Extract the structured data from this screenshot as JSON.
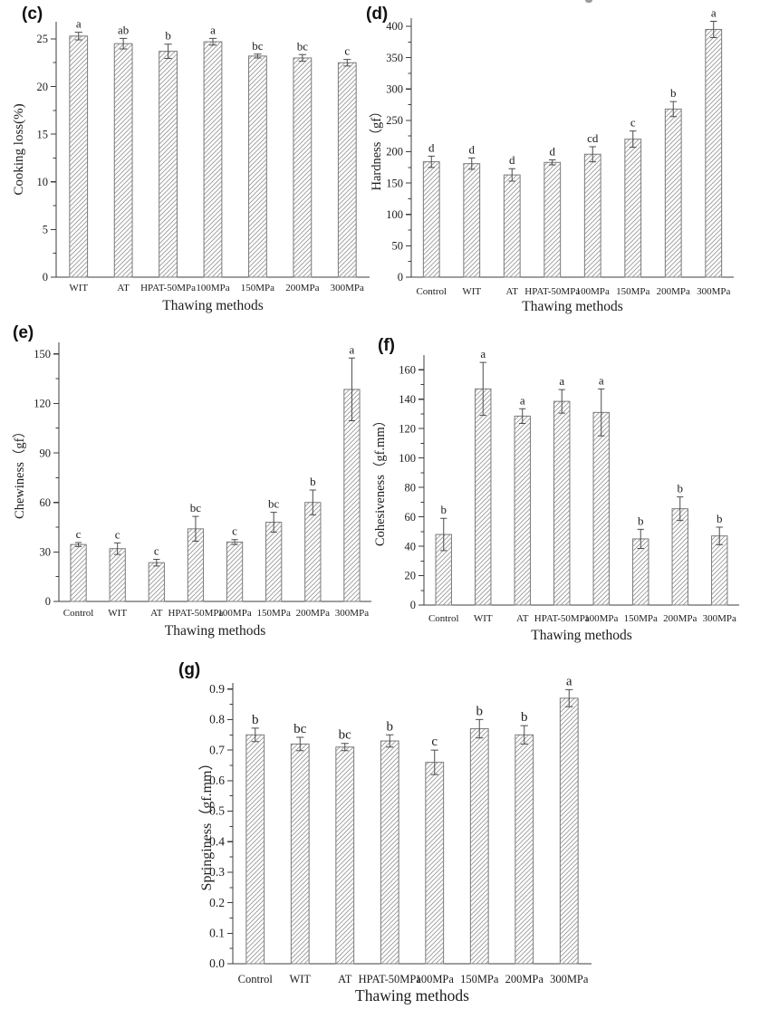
{
  "figure": {
    "background_color": "#ffffff",
    "text_color": "#1c1c1c",
    "axis_color": "#3c3c3c",
    "bar_fill_color": "#ffffff",
    "bar_border_color": "#7a7a7a",
    "hatch_line_color": "#9a9a9a",
    "error_bar_color": "#4c4c4c"
  },
  "chart_data": [
    {
      "type": "bar",
      "panel_label": "(c)",
      "xlabel": "Thawing methods",
      "ylabel": "Cooking loss(%)",
      "categories": [
        "WIT",
        "AT",
        "HPAT-50MPa",
        "100MPa",
        "150MPa",
        "200MPa",
        "300MPa"
      ],
      "values": [
        25.3,
        24.5,
        23.7,
        24.7,
        23.2,
        23.0,
        22.5
      ],
      "error_bars": [
        0.4,
        0.55,
        0.75,
        0.35,
        0.2,
        0.35,
        0.35
      ],
      "significance_letters": [
        "a",
        "ab",
        "b",
        "a",
        "bc",
        "bc",
        "c"
      ],
      "ylim": [
        0,
        26.8
      ],
      "yticks": [
        "0",
        "5",
        "10",
        "15",
        "20",
        "25"
      ],
      "bar_style": "diagonal-hatch",
      "grid": false,
      "legend": null
    },
    {
      "type": "bar",
      "panel_label": "(d)",
      "xlabel": "Thawing methods",
      "ylabel": "Hardness（gf）",
      "categories": [
        "Control",
        "WIT",
        "AT",
        "HPAT-50MPa",
        "100MPa",
        "150MPa",
        "200MPa",
        "300MPa"
      ],
      "values": [
        184,
        181,
        163,
        183,
        196,
        220,
        268,
        395
      ],
      "error_bars": [
        9,
        9,
        10,
        4,
        12,
        13,
        12,
        13
      ],
      "significance_letters": [
        "d",
        "d",
        "d",
        "d",
        "cd",
        "c",
        "b",
        "a"
      ],
      "ylim": [
        0,
        413
      ],
      "yticks": [
        "0",
        "50",
        "100",
        "150",
        "200",
        "250",
        "300",
        "350",
        "400"
      ],
      "bar_style": "diagonal-hatch",
      "grid": false,
      "legend": null
    },
    {
      "type": "bar",
      "panel_label": "(e)",
      "xlabel": "Thawing methods",
      "ylabel": "Chewiness（gf）",
      "categories": [
        "Control",
        "WIT",
        "AT",
        "HPAT-50MPa",
        "100MPa",
        "150MPa",
        "200MPa",
        "300MPa"
      ],
      "values": [
        34.5,
        32,
        23.5,
        44,
        36,
        48,
        60,
        128.5
      ],
      "error_bars": [
        1.2,
        3.5,
        2,
        7.5,
        1.5,
        6,
        7.5,
        19
      ],
      "significance_letters": [
        "c",
        "c",
        "c",
        "bc",
        "c",
        "bc",
        "b",
        "a"
      ],
      "ylim": [
        0,
        157
      ],
      "yticks": [
        "0",
        "30",
        "60",
        "90",
        "120",
        "150"
      ],
      "bar_style": "diagonal-hatch",
      "grid": false,
      "legend": null
    },
    {
      "type": "bar",
      "panel_label": "(f)",
      "xlabel": "Thawing methods",
      "ylabel": "Cohesiveness（gf.mm）",
      "categories": [
        "Control",
        "WIT",
        "AT",
        "HPAT-50MPa",
        "100MPa",
        "150MPa",
        "200MPa",
        "300MPa"
      ],
      "values": [
        48,
        147,
        128.5,
        138.5,
        131,
        45,
        65.5,
        47
      ],
      "error_bars": [
        11,
        18,
        5,
        8,
        16,
        6.5,
        8,
        6
      ],
      "significance_letters": [
        "b",
        "a",
        "a",
        "a",
        "a",
        "b",
        "b",
        "b"
      ],
      "ylim": [
        0,
        170
      ],
      "yticks": [
        "0",
        "20",
        "40",
        "60",
        "80",
        "100",
        "120",
        "140",
        "160"
      ],
      "bar_style": "diagonal-hatch",
      "grid": false,
      "legend": null
    },
    {
      "type": "bar",
      "panel_label": "(g)",
      "xlabel": "Thawing methods",
      "ylabel": "Springiness（gf.mm）",
      "categories": [
        "Control",
        "WIT",
        "AT",
        "HPAT-50MPa",
        "100MPa",
        "150MPa",
        "200MPa",
        "300MPa"
      ],
      "values": [
        0.75,
        0.72,
        0.71,
        0.73,
        0.66,
        0.77,
        0.75,
        0.87
      ],
      "error_bars": [
        0.022,
        0.022,
        0.012,
        0.02,
        0.04,
        0.03,
        0.03,
        0.028
      ],
      "significance_letters": [
        "b",
        "bc",
        "bc",
        "b",
        "c",
        "b",
        "b",
        "a"
      ],
      "ylim": [
        0,
        0.92
      ],
      "yticks": [
        "0.0",
        "0.1",
        "0.2",
        "0.3",
        "0.4",
        "0.5",
        "0.6",
        "0.7",
        "0.8",
        "0.9"
      ],
      "bar_style": "diagonal-hatch",
      "grid": false,
      "legend": null
    }
  ]
}
